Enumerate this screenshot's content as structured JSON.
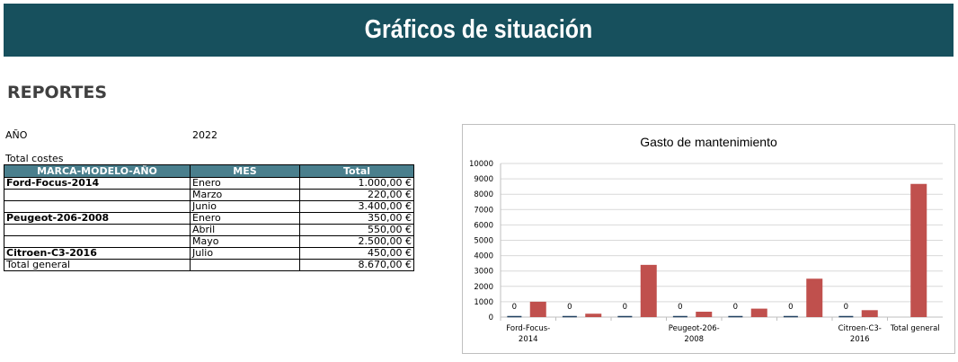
{
  "header": {
    "title": "Gráficos de situación"
  },
  "section": {
    "title": "REPORTES"
  },
  "filters": {
    "year_label": "AÑO",
    "year_value": "2022",
    "measure_label": "Total costes"
  },
  "table": {
    "columns": [
      "MARCA-MODELO-AÑO",
      "MES",
      "Total"
    ],
    "rows": [
      {
        "brand": "Ford-Focus-2014",
        "month": "Enero",
        "total": "1.000,00 €"
      },
      {
        "brand": "",
        "month": "Marzo",
        "total": "220,00 €"
      },
      {
        "brand": "",
        "month": "Junio",
        "total": "3.400,00 €"
      },
      {
        "brand": "Peugeot-206-2008",
        "month": "Enero",
        "total": "350,00 €"
      },
      {
        "brand": "",
        "month": "Abril",
        "total": "550,00 €"
      },
      {
        "brand": "",
        "month": "Mayo",
        "total": "2.500,00 €"
      },
      {
        "brand": "Citroen-C3-2016",
        "month": "Julio",
        "total": "450,00 €"
      }
    ],
    "total_row": {
      "label": "Total general",
      "month": "",
      "total": "8.670,00 €"
    }
  },
  "colors": {
    "banner": "#17505d",
    "table_header": "#4a7f8d",
    "bar_primary": "#c0504d",
    "bar_secondary": "#1f3f5f"
  },
  "chart_data": {
    "type": "bar",
    "title": "Gasto de mantenimiento",
    "xlabel": "",
    "ylabel": "",
    "ylim": [
      0,
      10000
    ],
    "yticks": [
      "0",
      "1000",
      "2000",
      "3000",
      "4000",
      "5000",
      "6000",
      "7000",
      "8000",
      "9000",
      "10000"
    ],
    "groups": [
      {
        "label": "Ford-Focus-2014",
        "label_lines": [
          "Ford-Focus-",
          "2014"
        ],
        "secondary": 0,
        "value": 1000
      },
      {
        "label": "",
        "label_lines": [],
        "secondary": 0,
        "value": 220
      },
      {
        "label": "",
        "label_lines": [],
        "secondary": 0,
        "value": 3400
      },
      {
        "label": "Peugeot-206-2008",
        "label_lines": [
          "Peugeot-206-",
          "2008"
        ],
        "secondary": 0,
        "value": 350
      },
      {
        "label": "",
        "label_lines": [],
        "secondary": 0,
        "value": 550
      },
      {
        "label": "",
        "label_lines": [],
        "secondary": 0,
        "value": 2500
      },
      {
        "label": "Citroen-C3-2016",
        "label_lines": [
          "Citroen-C3-",
          "2016"
        ],
        "secondary": 0,
        "value": 450
      },
      {
        "label": "Total general",
        "label_lines": [
          "Total general"
        ],
        "secondary": null,
        "value": 8670
      }
    ],
    "secondary_labels": [
      "0",
      "0",
      "0",
      "0",
      "0",
      "0",
      "0"
    ],
    "grid": true,
    "legend": "none"
  }
}
